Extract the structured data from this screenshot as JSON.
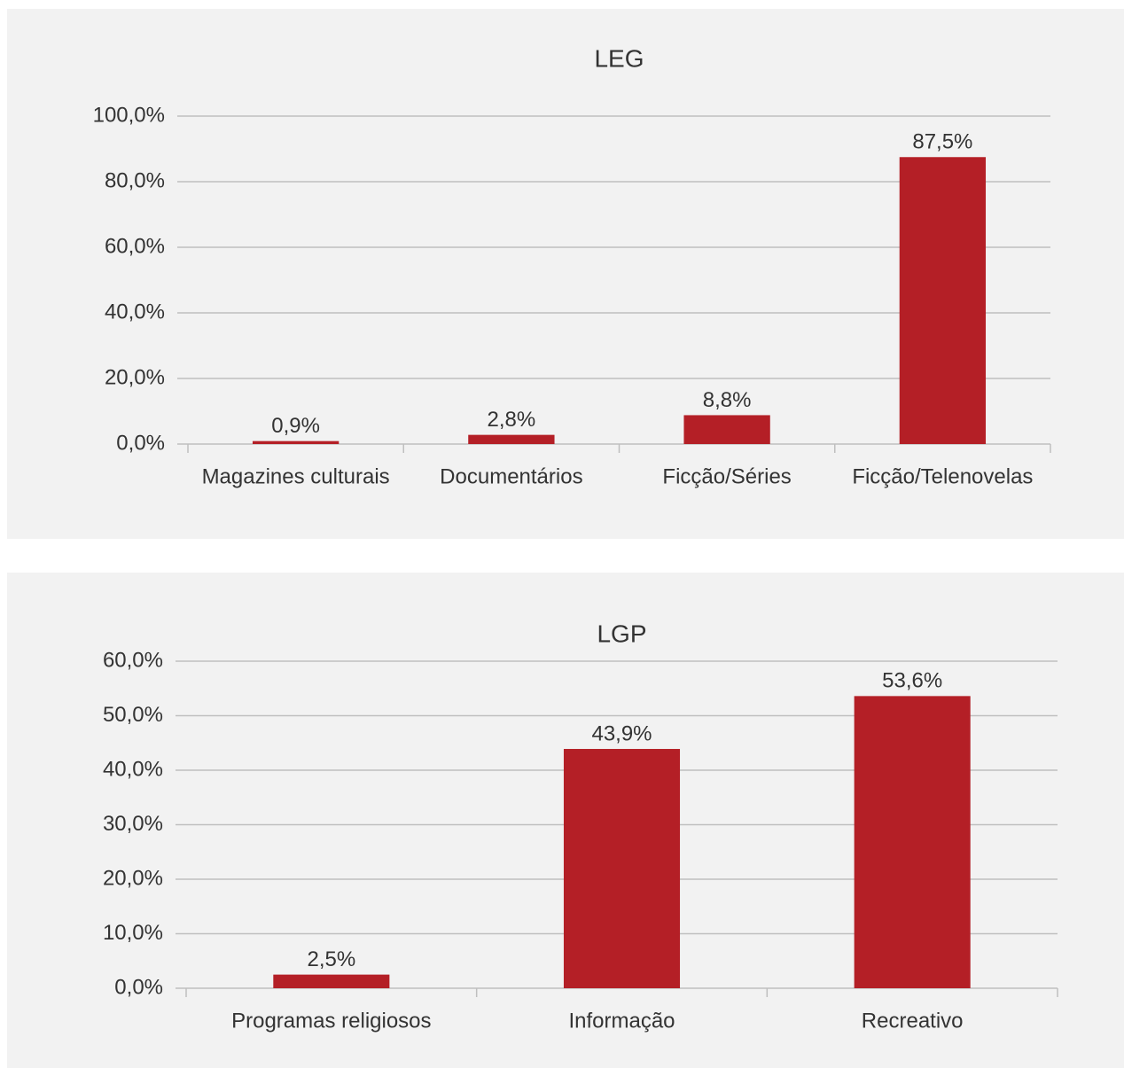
{
  "chart_data": [
    {
      "type": "bar",
      "title": "LEG",
      "categories": [
        "Magazines culturais",
        "Documentários",
        "Ficção/Séries",
        "Ficção/Telenovelas"
      ],
      "values": [
        0.9,
        2.8,
        8.8,
        87.5
      ],
      "value_labels": [
        "0,9%",
        "2,8%",
        "8,8%",
        "87,5%"
      ],
      "color": "#b41f26",
      "ylim": [
        0,
        100
      ],
      "yticks": [
        {
          "value": 0,
          "label": "0,0%"
        },
        {
          "value": 20,
          "label": "20,0%"
        },
        {
          "value": 40,
          "label": "40,0%"
        },
        {
          "value": 60,
          "label": "60,0%"
        },
        {
          "value": 80,
          "label": "80,0%"
        },
        {
          "value": 100,
          "label": "100,0%"
        }
      ],
      "grid": true
    },
    {
      "type": "bar",
      "title": "LGP",
      "categories": [
        "Programas religiosos",
        "Informação",
        "Recreativo"
      ],
      "values": [
        2.5,
        43.9,
        53.6
      ],
      "value_labels": [
        "2,5%",
        "43,9%",
        "53,6%"
      ],
      "color": "#b41f26",
      "ylim": [
        0,
        60
      ],
      "yticks": [
        {
          "value": 0,
          "label": "0,0%"
        },
        {
          "value": 10,
          "label": "10,0%"
        },
        {
          "value": 20,
          "label": "20,0%"
        },
        {
          "value": 30,
          "label": "30,0%"
        },
        {
          "value": 40,
          "label": "40,0%"
        },
        {
          "value": 50,
          "label": "50,0%"
        },
        {
          "value": 60,
          "label": "60,0%"
        }
      ],
      "grid": true
    }
  ]
}
